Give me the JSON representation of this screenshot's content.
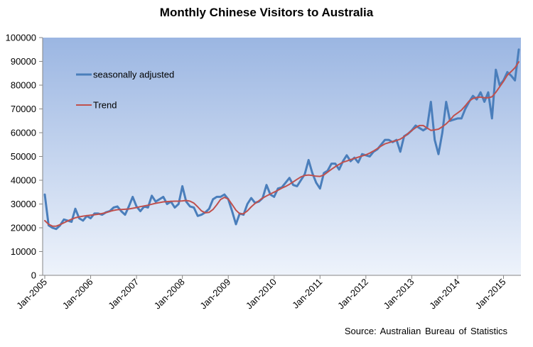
{
  "chart_data": {
    "type": "line",
    "title": "Monthly Chinese Visitors to Australia",
    "xlabel": "",
    "ylabel": "",
    "source": "Source: Australian Bureau of Statistics",
    "ylim": [
      0,
      100000
    ],
    "yticks": [
      "0",
      "10000",
      "20000",
      "30000",
      "40000",
      "50000",
      "60000",
      "70000",
      "80000",
      "90000",
      "100000"
    ],
    "xticks": [
      "Jan-2005",
      "Jan-2006",
      "Jan-2007",
      "Jan-2008",
      "Jan-2009",
      "Jan-2010",
      "Jan-2011",
      "Jan-2012",
      "Jan-2013",
      "Jan-2014",
      "Jan-2015"
    ],
    "x_start": "Jan-2005",
    "x_end": "Nov-2015",
    "legend_position": "top-left",
    "grid": false,
    "colors": {
      "seasonally_adjusted": "#4a7ebb",
      "trend": "#c0504d",
      "plot_bg_top": "#9bb6e2",
      "plot_bg_bottom": "#eef3fb"
    },
    "series": [
      {
        "name": "seasonally adjusted",
        "values": [
          34000,
          21000,
          20000,
          19500,
          21000,
          23500,
          23000,
          22500,
          28000,
          24000,
          23000,
          25000,
          24000,
          26000,
          26000,
          25500,
          26500,
          27000,
          28500,
          29000,
          27000,
          25500,
          29000,
          33000,
          29000,
          27000,
          29000,
          28500,
          33500,
          31000,
          32000,
          33000,
          30000,
          31000,
          28500,
          30000,
          37500,
          31000,
          29000,
          28500,
          25000,
          25500,
          26500,
          28000,
          32000,
          33000,
          33000,
          34000,
          32000,
          27000,
          21500,
          26000,
          25500,
          30000,
          32500,
          30500,
          31000,
          32500,
          38000,
          34000,
          33000,
          36500,
          37000,
          39000,
          41000,
          38000,
          37500,
          40000,
          42500,
          48500,
          43000,
          39000,
          36500,
          43000,
          44000,
          47000,
          47000,
          44500,
          48000,
          50500,
          48000,
          49500,
          47500,
          51000,
          50500,
          50000,
          52000,
          53000,
          55000,
          57000,
          57000,
          56000,
          57000,
          52000,
          58500,
          59500,
          61000,
          63000,
          62000,
          61000,
          62000,
          73000,
          57000,
          51000,
          60000,
          73000,
          65000,
          65500,
          66000,
          66000,
          70000,
          73000,
          75500,
          74000,
          77000,
          73000,
          77000,
          66000,
          86500,
          80000,
          82000,
          85500,
          84000,
          82000,
          95000
        ]
      },
      {
        "name": "Trend",
        "values": [
          23000,
          21500,
          20700,
          20700,
          21300,
          22100,
          22900,
          23600,
          24200,
          24600,
          24900,
          25100,
          25300,
          25500,
          25700,
          26000,
          26400,
          26900,
          27300,
          27600,
          27700,
          27800,
          27900,
          28200,
          28500,
          28900,
          29200,
          29500,
          29900,
          30300,
          30600,
          30900,
          31000,
          31100,
          31200,
          31200,
          31300,
          31500,
          31200,
          30400,
          28800,
          27100,
          26300,
          26500,
          27700,
          29700,
          31900,
          32800,
          32100,
          29800,
          27400,
          25900,
          25900,
          27100,
          28800,
          30200,
          31300,
          32500,
          33400,
          34200,
          35000,
          35800,
          36700,
          37400,
          38300,
          39300,
          40400,
          41400,
          42000,
          42200,
          42000,
          41700,
          41600,
          42200,
          43400,
          44600,
          45700,
          46700,
          47600,
          48100,
          48700,
          49200,
          49700,
          50200,
          50700,
          51400,
          52300,
          53300,
          54400,
          55300,
          55800,
          56300,
          56700,
          57300,
          58300,
          59600,
          60900,
          62100,
          63000,
          63000,
          62000,
          61000,
          61200,
          61500,
          62500,
          63700,
          65300,
          67200,
          68300,
          69500,
          71300,
          73300,
          74400,
          74800,
          75000,
          74700,
          74700,
          75100,
          77000,
          79300,
          81600,
          84200,
          85700,
          87300,
          89800
        ]
      }
    ]
  }
}
